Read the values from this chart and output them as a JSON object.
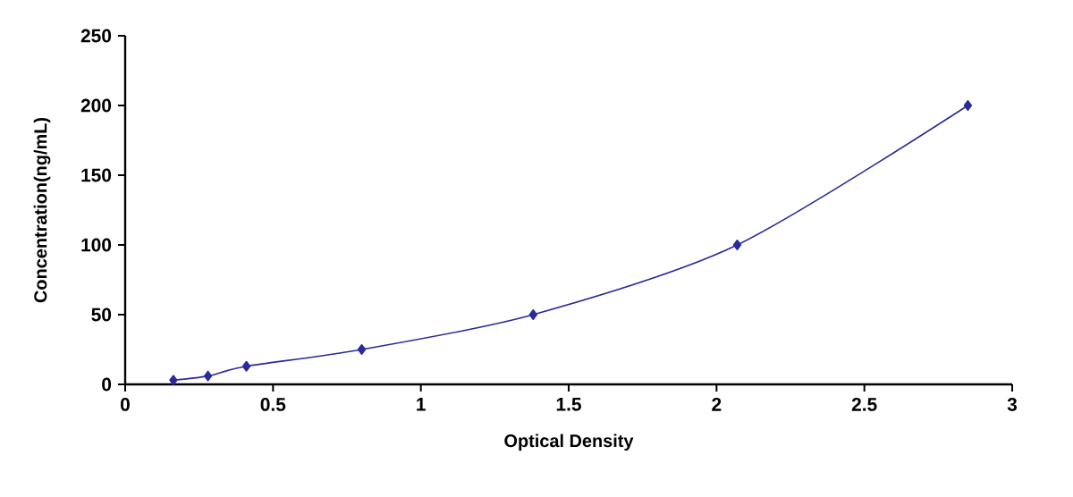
{
  "chart_data": {
    "type": "line",
    "xlabel": "Optical Density",
    "ylabel": "Concentration(ng/mL)",
    "x": [
      0.163,
      0.28,
      0.41,
      0.8,
      1.38,
      2.07,
      2.85
    ],
    "series": [
      {
        "color": "#2a2a9a",
        "values": [
          3,
          6,
          13,
          25,
          50,
          100,
          200
        ]
      }
    ],
    "xlim": [
      0,
      3
    ],
    "ylim": [
      0,
      250
    ],
    "xticks": [
      0,
      0.5,
      1,
      1.5,
      2,
      2.5,
      3
    ],
    "yticks": [
      0,
      50,
      100,
      150,
      200,
      250
    ],
    "marker": "diamond",
    "line_style": "solid"
  }
}
